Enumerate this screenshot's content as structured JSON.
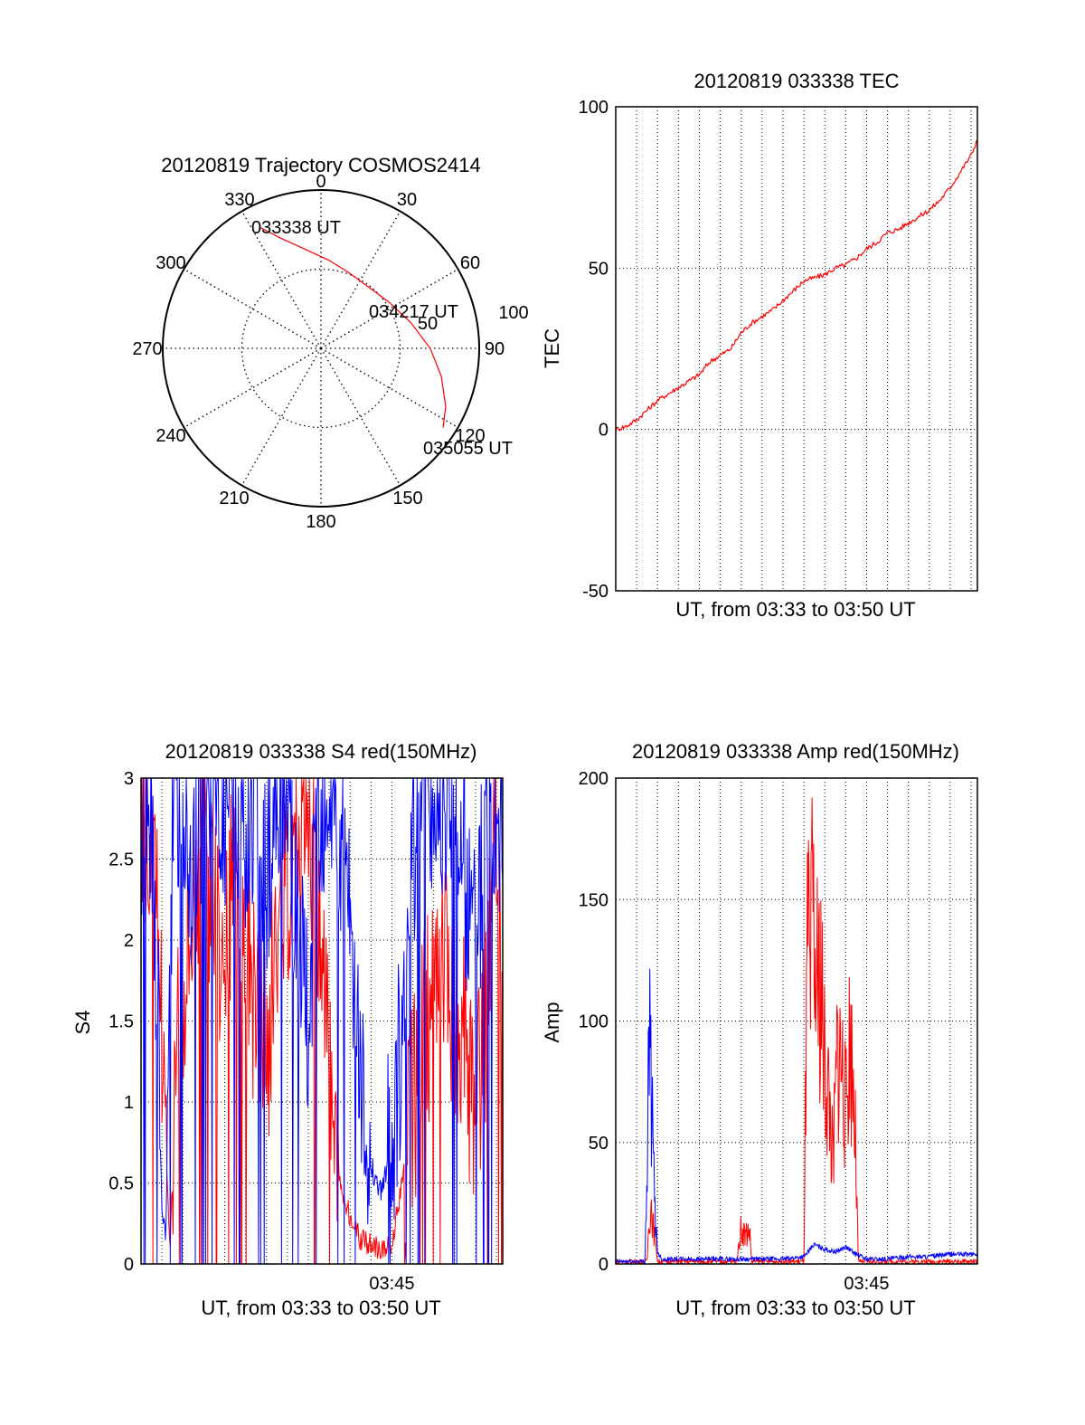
{
  "colors": {
    "red": "#ff0000",
    "blue": "#0000ff",
    "axis": "#000000",
    "grid": "#000000"
  },
  "chart_data": [
    {
      "type": "polar",
      "title": "20120819 Trajectory COSMOS2414",
      "azimuth_labels": [
        "0",
        "30",
        "60",
        "90",
        "120",
        "150",
        "180",
        "210",
        "240",
        "270",
        "300",
        "330"
      ],
      "radius_labels": [
        "50",
        "100"
      ],
      "grid": true,
      "trajectory": {
        "color": "#ff0000",
        "points": [
          {
            "az": 333,
            "r": 86
          },
          {
            "az": 340,
            "r": 74
          },
          {
            "az": 350,
            "r": 64
          },
          {
            "az": 5,
            "r": 56
          },
          {
            "az": 20,
            "r": 51
          },
          {
            "az": 38,
            "r": 49
          },
          {
            "az": 56,
            "r": 52
          },
          {
            "az": 74,
            "r": 59
          },
          {
            "az": 90,
            "r": 69
          },
          {
            "az": 103,
            "r": 78
          },
          {
            "az": 115,
            "r": 87
          },
          {
            "az": 123,
            "r": 92
          }
        ]
      },
      "annotations": [
        {
          "text": "033338 UT",
          "az": 333,
          "r": 86
        },
        {
          "text": "034217 UT",
          "az": 65,
          "r": 55
        },
        {
          "text": "035055 UT",
          "az": 123,
          "r": 92
        }
      ]
    },
    {
      "type": "line",
      "title": "20120819 033338 TEC",
      "xlabel": "UT, from 03:33 to 03:50 UT",
      "ylabel": "TEC",
      "xlim": [
        0,
        17.3
      ],
      "ylim": [
        -50,
        100
      ],
      "yticks": [
        "-50",
        "0",
        "50",
        "100"
      ],
      "grid": true,
      "series": [
        {
          "color": "#ff0000",
          "x": [
            0.0,
            0.5,
            1.0,
            1.5,
            2.0,
            2.5,
            3.0,
            3.5,
            4.0,
            4.5,
            5.0,
            5.5,
            6.0,
            6.5,
            7.0,
            7.5,
            8.0,
            8.5,
            9.0,
            9.5,
            10.0,
            10.5,
            11.0,
            11.5,
            12.0,
            12.5,
            13.0,
            13.5,
            14.0,
            14.5,
            15.0,
            15.5,
            16.0,
            16.5,
            17.0,
            17.3
          ],
          "y": [
            0,
            1,
            3,
            6,
            9,
            11,
            13,
            15,
            17,
            21,
            23,
            25,
            30,
            33,
            35,
            37,
            40,
            43,
            46,
            47,
            48,
            50,
            51,
            53,
            56,
            58,
            61,
            62,
            64,
            66,
            68,
            71,
            75,
            80,
            85,
            90
          ]
        }
      ]
    },
    {
      "type": "line",
      "title": "20120819 033338 S4 red(150MHz)",
      "xlabel": "UT, from 03:33 to 03:50 UT",
      "ylabel": "S4",
      "xlim": [
        0,
        17.3
      ],
      "ylim": [
        0,
        3
      ],
      "xticks": [
        {
          "value": 12,
          "label": "03:45"
        }
      ],
      "yticks": [
        "0",
        "0.5",
        "1",
        "1.5",
        "2",
        "2.5",
        "3"
      ],
      "grid": true,
      "series": [
        {
          "color": "#ff0000",
          "x": [
            0.0,
            0.4,
            0.8,
            1.0,
            1.2,
            1.4,
            1.7,
            2.0,
            2.5,
            3.0,
            3.5,
            4.0,
            4.5,
            5.0,
            5.5,
            6.0,
            6.5,
            7.0,
            7.5,
            8.0,
            8.5,
            9.0,
            9.5,
            10.0,
            10.5,
            11.0,
            11.5,
            12.0,
            12.5,
            13.0,
            13.5,
            14.0,
            14.5,
            15.0,
            15.5,
            16.0,
            16.5,
            17.0,
            17.3
          ],
          "y": [
            2.9,
            2.6,
            2.2,
            1.5,
            0.6,
            0.15,
            1.2,
            1.8,
            2.3,
            2.6,
            2.2,
            1.9,
            2.5,
            2.0,
            1.6,
            1.2,
            2.0,
            2.4,
            2.7,
            2.8,
            2.2,
            1.2,
            0.5,
            0.3,
            0.15,
            0.12,
            0.1,
            0.12,
            0.5,
            1.0,
            1.4,
            1.7,
            1.9,
            1.6,
            1.3,
            0.8,
            1.5,
            2.8,
            1.5
          ]
        },
        {
          "color": "#0000ff",
          "x": [
            0.0,
            0.4,
            0.8,
            1.0,
            1.2,
            1.5,
            2.0,
            2.5,
            3.0,
            3.5,
            4.0,
            4.5,
            5.0,
            5.5,
            6.0,
            6.5,
            7.0,
            7.5,
            8.0,
            8.5,
            9.0,
            9.5,
            10.0,
            10.5,
            11.0,
            11.5,
            12.0,
            12.5,
            13.0,
            13.5,
            14.0,
            14.5,
            15.0,
            15.5,
            16.0,
            16.5,
            17.0,
            17.3
          ],
          "y": [
            2.5,
            2.9,
            1.8,
            0.3,
            0.2,
            2.8,
            3.0,
            2.4,
            2.9,
            3.0,
            2.8,
            3.0,
            2.6,
            3.0,
            2.5,
            2.9,
            3.0,
            2.0,
            1.5,
            2.9,
            3.0,
            2.5,
            2.0,
            1.2,
            0.6,
            0.45,
            0.7,
            1.5,
            2.6,
            3.0,
            2.8,
            3.0,
            2.9,
            2.4,
            2.0,
            2.8,
            3.0,
            2.7
          ]
        }
      ]
    },
    {
      "type": "line",
      "title": "20120819 033338 Amp red(150MHz)",
      "xlabel": "UT, from 03:33 to 03:50 UT",
      "ylabel": "Amp",
      "xlim": [
        0,
        17.3
      ],
      "ylim": [
        0,
        200
      ],
      "xticks": [
        {
          "value": 12,
          "label": "03:45"
        }
      ],
      "yticks": [
        "0",
        "50",
        "100",
        "150",
        "200"
      ],
      "grid": true,
      "series": [
        {
          "color": "#ff0000",
          "x": [
            0.0,
            1.5,
            1.6,
            1.7,
            1.8,
            1.9,
            2.0,
            5.8,
            5.9,
            6.0,
            6.2,
            6.4,
            6.5,
            9.0,
            9.1,
            9.2,
            9.3,
            9.4,
            9.6,
            9.8,
            10.0,
            10.2,
            10.4,
            10.6,
            10.8,
            11.0,
            11.2,
            11.4,
            11.5,
            11.6,
            17.3
          ],
          "y": [
            1,
            1,
            20,
            25,
            15,
            10,
            1,
            1,
            10,
            15,
            12,
            14,
            1,
            1,
            80,
            140,
            100,
            145,
            110,
            120,
            80,
            70,
            40,
            90,
            85,
            60,
            95,
            70,
            40,
            1,
            1
          ]
        },
        {
          "color": "#0000ff",
          "x": [
            0.0,
            1.4,
            1.5,
            1.6,
            1.7,
            1.8,
            1.9,
            2.0,
            2.2,
            4.0,
            6.0,
            8.0,
            9.0,
            9.5,
            10.0,
            10.5,
            11.0,
            11.5,
            12.0,
            13.0,
            14.0,
            15.0,
            16.0,
            17.3
          ],
          "y": [
            1,
            1,
            40,
            100,
            70,
            40,
            20,
            5,
            2,
            2,
            2,
            2,
            3,
            8,
            6,
            5,
            7,
            4,
            2,
            2,
            3,
            3,
            4,
            4
          ]
        }
      ]
    }
  ]
}
